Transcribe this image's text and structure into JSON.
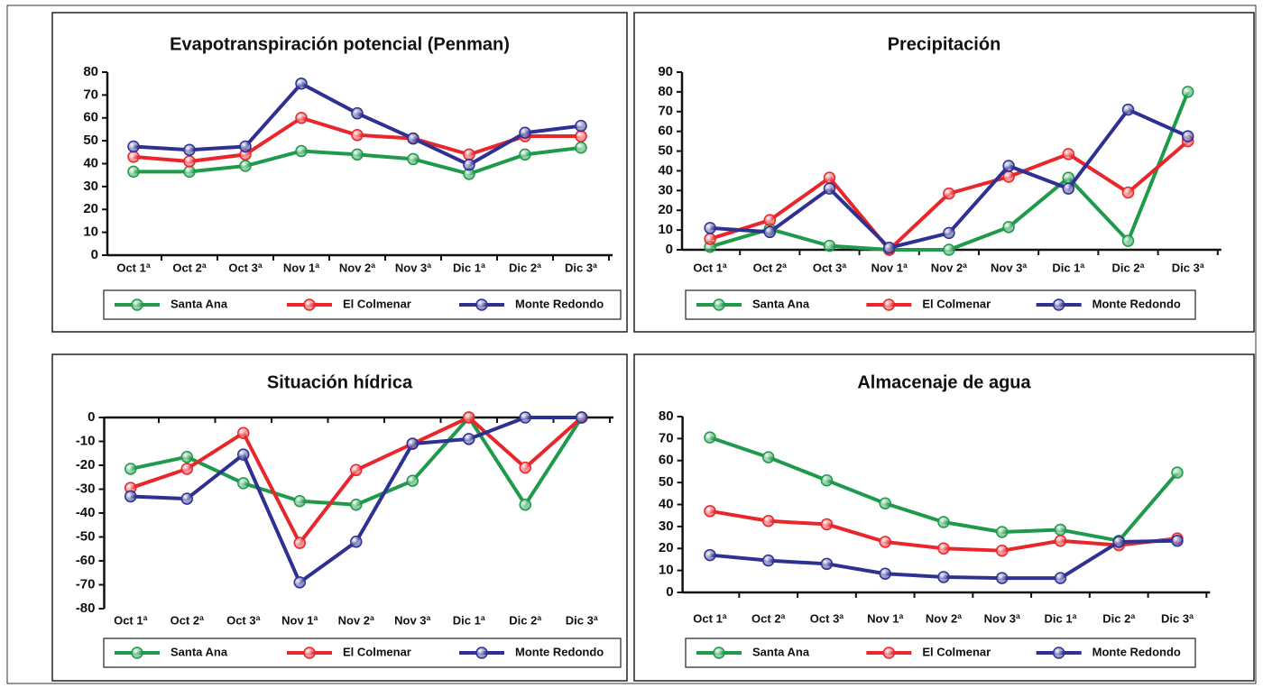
{
  "chart_data": [
    {
      "type": "line",
      "title": "Evapotranspiración potencial (Penman)",
      "categories": [
        "Oct 1ª",
        "Oct 2ª",
        "Oct 3ª",
        "Nov 1ª",
        "Nov 2ª",
        "Nov 3ª",
        "Dic 1ª",
        "Dic 2ª",
        "Dic 3ª"
      ],
      "series": [
        {
          "name": "Santa Ana",
          "color": "#1e9a4a",
          "values": [
            36.5,
            36.5,
            39,
            45.5,
            44,
            42,
            35.5,
            44,
            47
          ]
        },
        {
          "name": "El Colmenar",
          "color": "#e8262b",
          "values": [
            43,
            41,
            44,
            60,
            52.5,
            51,
            44,
            52,
            52
          ]
        },
        {
          "name": "Monte Redondo",
          "color": "#2e3192",
          "values": [
            47.5,
            46,
            47.5,
            75,
            62,
            51,
            39.5,
            53.5,
            56.5
          ]
        }
      ],
      "ylim": [
        0,
        80
      ],
      "yticks": [
        0,
        10,
        20,
        30,
        40,
        50,
        60,
        70,
        80
      ]
    },
    {
      "type": "line",
      "title": "Precipitación",
      "categories": [
        "Oct 1ª",
        "Oct 2ª",
        "Oct 3ª",
        "Nov 1ª",
        "Nov 2ª",
        "Nov 3ª",
        "Dic 1ª",
        "Dic 2ª",
        "Dic 3ª"
      ],
      "series": [
        {
          "name": "Santa Ana",
          "color": "#1e9a4a",
          "values": [
            1.5,
            10.5,
            2,
            0,
            0,
            11.5,
            36.5,
            4.5,
            80
          ]
        },
        {
          "name": "El Colmenar",
          "color": "#e8262b",
          "values": [
            5.5,
            15,
            36.5,
            0,
            28.5,
            37,
            48.5,
            29,
            55
          ]
        },
        {
          "name": "Monte Redondo",
          "color": "#2e3192",
          "values": [
            11,
            9,
            31,
            1,
            8.5,
            42.5,
            31,
            71,
            57.5
          ]
        }
      ],
      "ylim": [
        0,
        90
      ],
      "yticks": [
        0,
        10,
        20,
        30,
        40,
        50,
        60,
        70,
        80,
        90
      ]
    },
    {
      "type": "line",
      "title": "Situación hídrica",
      "categories": [
        "Oct 1ª",
        "Oct 2ª",
        "Oct 3ª",
        "Nov 1ª",
        "Nov 2ª",
        "Nov 3ª",
        "Dic 1ª",
        "Dic 2ª",
        "Dic 3ª"
      ],
      "series": [
        {
          "name": "Santa Ana",
          "color": "#1e9a4a",
          "values": [
            -21.5,
            -16.5,
            -27.5,
            -35,
            -36.5,
            -26.5,
            0,
            -36.5,
            0
          ]
        },
        {
          "name": "El Colmenar",
          "color": "#e8262b",
          "values": [
            -29.5,
            -21.5,
            -6.5,
            -52.5,
            -22,
            -11,
            0,
            -21,
            0
          ]
        },
        {
          "name": "Monte Redondo",
          "color": "#2e3192",
          "values": [
            -33,
            -34,
            -15.5,
            -69,
            -52,
            -11,
            -9,
            0,
            0
          ]
        }
      ],
      "ylim": [
        -80,
        0
      ],
      "yticks": [
        -80,
        -70,
        -60,
        -50,
        -40,
        -30,
        -20,
        -10,
        0
      ]
    },
    {
      "type": "line",
      "title": "Almacenaje de agua",
      "categories": [
        "Oct 1ª",
        "Oct 2ª",
        "Oct 3ª",
        "Nov 1ª",
        "Nov 2ª",
        "Nov 3ª",
        "Dic 1ª",
        "Dic 2ª",
        "Dic 3ª"
      ],
      "series": [
        {
          "name": "Santa Ana",
          "color": "#1e9a4a",
          "values": [
            70.5,
            61.5,
            51,
            40.5,
            32,
            27.5,
            28.5,
            23.5,
            54.5
          ]
        },
        {
          "name": "El Colmenar",
          "color": "#e8262b",
          "values": [
            37,
            32.5,
            31,
            23,
            20,
            19,
            23.5,
            21.5,
            24.5
          ]
        },
        {
          "name": "Monte Redondo",
          "color": "#2e3192",
          "values": [
            17,
            14.5,
            13,
            8.5,
            7,
            6.5,
            6.5,
            23,
            23.5
          ]
        }
      ],
      "ylim": [
        0,
        80
      ],
      "yticks": [
        0,
        10,
        20,
        30,
        40,
        50,
        60,
        70,
        80
      ]
    }
  ]
}
